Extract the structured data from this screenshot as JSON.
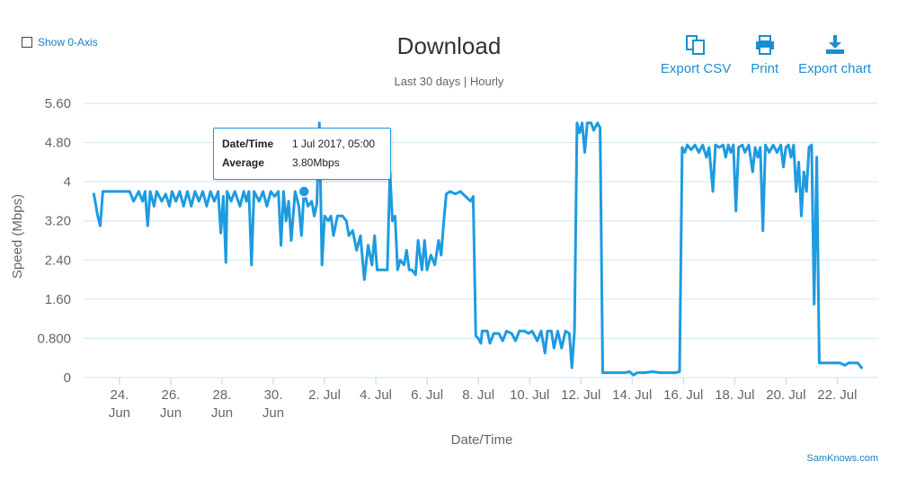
{
  "controls": {
    "show_zero_axis": "Show 0-Axis"
  },
  "header": {
    "title": "Download",
    "subtitle": "Last 30 days | Hourly"
  },
  "toolbar": {
    "export_csv": "Export CSV",
    "print": "Print",
    "export_chart": "Export chart"
  },
  "tooltip": {
    "date_label": "Date/Time",
    "date_value": "1 Jul 2017, 05:00",
    "avg_label": "Average",
    "avg_value": "3.80Mbps"
  },
  "credit": "SamKnows.com",
  "colors": {
    "series": "#1e9be0",
    "grid": "#cfe6f3"
  },
  "chart_data": {
    "type": "line",
    "title": "Download",
    "subtitle": "Last 30 days | Hourly",
    "xlabel": "Date/Time",
    "ylabel": "Speed (Mbps)",
    "ylim": [
      0,
      5.6
    ],
    "xlim_days": [
      22.6,
      53.6
    ],
    "y_ticks": [
      "0",
      "0.800",
      "1.60",
      "2.40",
      "3.20",
      "4",
      "4.80",
      "5.60"
    ],
    "x_ticks": [
      {
        "day": 24,
        "l1": "24.",
        "l2": "Jun"
      },
      {
        "day": 26,
        "l1": "26.",
        "l2": "Jun"
      },
      {
        "day": 28,
        "l1": "28.",
        "l2": "Jun"
      },
      {
        "day": 30,
        "l1": "30.",
        "l2": "Jun"
      },
      {
        "day": 32,
        "l1": "2. Jul",
        "l2": ""
      },
      {
        "day": 34,
        "l1": "4. Jul",
        "l2": ""
      },
      {
        "day": 36,
        "l1": "6. Jul",
        "l2": ""
      },
      {
        "day": 38,
        "l1": "8. Jul",
        "l2": ""
      },
      {
        "day": 40,
        "l1": "10. Jul",
        "l2": ""
      },
      {
        "day": 42,
        "l1": "12. Jul",
        "l2": ""
      },
      {
        "day": 44,
        "l1": "14. Jul",
        "l2": ""
      },
      {
        "day": 46,
        "l1": "16. Jul",
        "l2": ""
      },
      {
        "day": 48,
        "l1": "18. Jul",
        "l2": ""
      },
      {
        "day": 50,
        "l1": "20. Jul",
        "l2": ""
      },
      {
        "day": 52,
        "l1": "22. Jul",
        "l2": ""
      }
    ],
    "grid": true,
    "legend": "none",
    "highlight_point": {
      "x": 31.2,
      "y": 3.8
    },
    "series": [
      {
        "points": [
          [
            23.0,
            3.75
          ],
          [
            23.15,
            3.3
          ],
          [
            23.25,
            3.1
          ],
          [
            23.35,
            3.8
          ],
          [
            23.6,
            3.8
          ],
          [
            23.9,
            3.8
          ],
          [
            24.2,
            3.8
          ],
          [
            24.4,
            3.8
          ],
          [
            24.55,
            3.6
          ],
          [
            24.75,
            3.8
          ],
          [
            24.9,
            3.6
          ],
          [
            25.0,
            3.8
          ],
          [
            25.1,
            3.1
          ],
          [
            25.2,
            3.8
          ],
          [
            25.35,
            3.5
          ],
          [
            25.45,
            3.8
          ],
          [
            25.65,
            3.6
          ],
          [
            25.8,
            3.75
          ],
          [
            25.95,
            3.5
          ],
          [
            26.05,
            3.8
          ],
          [
            26.2,
            3.6
          ],
          [
            26.35,
            3.8
          ],
          [
            26.5,
            3.5
          ],
          [
            26.65,
            3.8
          ],
          [
            26.8,
            3.5
          ],
          [
            26.95,
            3.8
          ],
          [
            27.1,
            3.6
          ],
          [
            27.25,
            3.8
          ],
          [
            27.4,
            3.5
          ],
          [
            27.55,
            3.8
          ],
          [
            27.7,
            3.6
          ],
          [
            27.85,
            3.8
          ],
          [
            27.95,
            2.95
          ],
          [
            28.05,
            3.7
          ],
          [
            28.15,
            2.35
          ],
          [
            28.2,
            3.8
          ],
          [
            28.35,
            3.6
          ],
          [
            28.5,
            3.8
          ],
          [
            28.7,
            3.5
          ],
          [
            28.85,
            3.8
          ],
          [
            28.95,
            3.6
          ],
          [
            29.05,
            3.8
          ],
          [
            29.15,
            2.3
          ],
          [
            29.25,
            3.8
          ],
          [
            29.45,
            3.6
          ],
          [
            29.6,
            3.8
          ],
          [
            29.75,
            3.5
          ],
          [
            29.9,
            3.8
          ],
          [
            30.05,
            3.7
          ],
          [
            30.2,
            3.8
          ],
          [
            30.3,
            2.7
          ],
          [
            30.4,
            3.8
          ],
          [
            30.5,
            3.2
          ],
          [
            30.6,
            3.6
          ],
          [
            30.7,
            2.8
          ],
          [
            30.85,
            3.8
          ],
          [
            31.0,
            3.5
          ],
          [
            31.1,
            2.9
          ],
          [
            31.2,
            3.8
          ],
          [
            31.35,
            3.5
          ],
          [
            31.5,
            3.6
          ],
          [
            31.6,
            3.3
          ],
          [
            31.7,
            3.55
          ],
          [
            31.8,
            5.2
          ],
          [
            31.9,
            2.3
          ],
          [
            32.0,
            3.3
          ],
          [
            32.15,
            3.2
          ],
          [
            32.25,
            3.3
          ],
          [
            32.35,
            2.9
          ],
          [
            32.5,
            3.3
          ],
          [
            32.7,
            3.3
          ],
          [
            32.85,
            3.2
          ],
          [
            32.95,
            2.9
          ],
          [
            33.1,
            3.0
          ],
          [
            33.25,
            2.6
          ],
          [
            33.4,
            2.9
          ],
          [
            33.55,
            2.0
          ],
          [
            33.7,
            2.7
          ],
          [
            33.85,
            2.3
          ],
          [
            33.95,
            2.9
          ],
          [
            34.05,
            2.2
          ],
          [
            34.2,
            2.2
          ],
          [
            34.35,
            2.2
          ],
          [
            34.45,
            2.2
          ],
          [
            34.55,
            4.2
          ],
          [
            34.65,
            3.2
          ],
          [
            34.75,
            3.3
          ],
          [
            34.85,
            2.2
          ],
          [
            34.95,
            2.4
          ],
          [
            35.1,
            2.3
          ],
          [
            35.2,
            2.6
          ],
          [
            35.3,
            2.2
          ],
          [
            35.4,
            2.2
          ],
          [
            35.55,
            2.1
          ],
          [
            35.65,
            2.8
          ],
          [
            35.8,
            2.2
          ],
          [
            35.9,
            2.8
          ],
          [
            36.0,
            2.2
          ],
          [
            36.15,
            2.5
          ],
          [
            36.3,
            2.3
          ],
          [
            36.45,
            2.8
          ],
          [
            36.55,
            2.5
          ],
          [
            36.65,
            3.2
          ],
          [
            36.75,
            3.75
          ],
          [
            36.9,
            3.8
          ],
          [
            37.1,
            3.75
          ],
          [
            37.3,
            3.8
          ],
          [
            37.5,
            3.7
          ],
          [
            37.7,
            3.6
          ],
          [
            37.8,
            3.7
          ],
          [
            37.9,
            0.85
          ],
          [
            38.0,
            0.8
          ],
          [
            38.1,
            0.7
          ],
          [
            38.15,
            0.95
          ],
          [
            38.35,
            0.95
          ],
          [
            38.45,
            0.7
          ],
          [
            38.6,
            0.9
          ],
          [
            38.8,
            0.9
          ],
          [
            38.95,
            0.75
          ],
          [
            39.1,
            0.95
          ],
          [
            39.3,
            0.9
          ],
          [
            39.45,
            0.75
          ],
          [
            39.6,
            0.95
          ],
          [
            39.8,
            0.95
          ],
          [
            39.95,
            0.9
          ],
          [
            40.1,
            0.95
          ],
          [
            40.3,
            0.75
          ],
          [
            40.45,
            0.95
          ],
          [
            40.6,
            0.5
          ],
          [
            40.7,
            0.95
          ],
          [
            40.85,
            0.95
          ],
          [
            40.95,
            0.6
          ],
          [
            41.1,
            0.95
          ],
          [
            41.25,
            0.6
          ],
          [
            41.4,
            0.95
          ],
          [
            41.55,
            0.9
          ],
          [
            41.65,
            0.2
          ],
          [
            41.75,
            0.95
          ],
          [
            41.85,
            5.2
          ],
          [
            41.95,
            5.0
          ],
          [
            42.05,
            5.2
          ],
          [
            42.15,
            4.6
          ],
          [
            42.25,
            5.2
          ],
          [
            42.4,
            5.2
          ],
          [
            42.5,
            5.05
          ],
          [
            42.65,
            5.2
          ],
          [
            42.75,
            5.1
          ],
          [
            42.85,
            0.1
          ],
          [
            43.1,
            0.1
          ],
          [
            43.4,
            0.1
          ],
          [
            43.7,
            0.1
          ],
          [
            43.9,
            0.12
          ],
          [
            44.05,
            0.05
          ],
          [
            44.2,
            0.1
          ],
          [
            44.5,
            0.1
          ],
          [
            44.8,
            0.12
          ],
          [
            45.1,
            0.1
          ],
          [
            45.4,
            0.1
          ],
          [
            45.7,
            0.1
          ],
          [
            45.85,
            0.12
          ],
          [
            45.95,
            4.7
          ],
          [
            46.05,
            4.6
          ],
          [
            46.15,
            4.75
          ],
          [
            46.3,
            4.65
          ],
          [
            46.45,
            4.75
          ],
          [
            46.6,
            4.6
          ],
          [
            46.75,
            4.75
          ],
          [
            46.9,
            4.5
          ],
          [
            47.0,
            4.7
          ],
          [
            47.15,
            3.8
          ],
          [
            47.25,
            4.75
          ],
          [
            47.4,
            4.7
          ],
          [
            47.55,
            4.75
          ],
          [
            47.65,
            4.5
          ],
          [
            47.75,
            4.75
          ],
          [
            47.85,
            4.6
          ],
          [
            47.95,
            4.75
          ],
          [
            48.05,
            3.4
          ],
          [
            48.15,
            4.7
          ],
          [
            48.3,
            4.75
          ],
          [
            48.4,
            4.6
          ],
          [
            48.55,
            4.75
          ],
          [
            48.7,
            4.2
          ],
          [
            48.8,
            4.7
          ],
          [
            48.9,
            4.5
          ],
          [
            49.0,
            4.7
          ],
          [
            49.1,
            3.0
          ],
          [
            49.2,
            4.75
          ],
          [
            49.35,
            4.6
          ],
          [
            49.5,
            4.75
          ],
          [
            49.65,
            4.6
          ],
          [
            49.8,
            4.75
          ],
          [
            49.9,
            4.3
          ],
          [
            50.0,
            4.7
          ],
          [
            50.1,
            4.75
          ],
          [
            50.2,
            4.5
          ],
          [
            50.3,
            4.75
          ],
          [
            50.4,
            3.8
          ],
          [
            50.5,
            4.4
          ],
          [
            50.6,
            3.3
          ],
          [
            50.7,
            4.2
          ],
          [
            50.8,
            3.8
          ],
          [
            50.9,
            4.7
          ],
          [
            51.0,
            4.75
          ],
          [
            51.1,
            1.5
          ],
          [
            51.2,
            4.5
          ],
          [
            51.3,
            0.3
          ],
          [
            51.5,
            0.3
          ],
          [
            51.8,
            0.3
          ],
          [
            52.1,
            0.3
          ],
          [
            52.3,
            0.25
          ],
          [
            52.45,
            0.3
          ],
          [
            52.6,
            0.3
          ],
          [
            52.8,
            0.3
          ],
          [
            52.95,
            0.2
          ]
        ]
      }
    ]
  }
}
